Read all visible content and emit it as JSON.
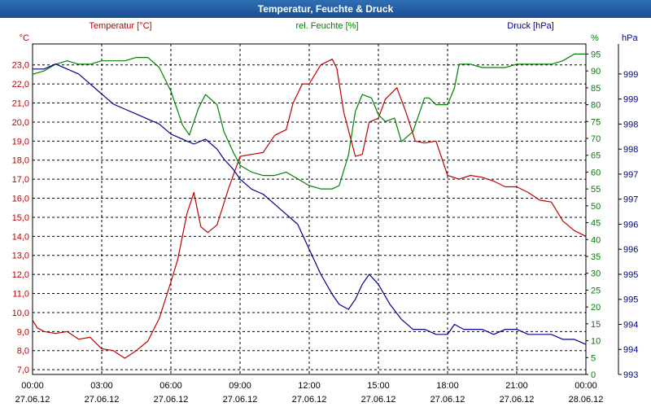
{
  "window": {
    "title": "Temperatur, Feuchte & Druck"
  },
  "chart_data": {
    "type": "line",
    "title": "Temperatur, Feuchte & Druck",
    "xlabel": "",
    "grid": true,
    "x_ticks": [
      {
        "time": "00:00",
        "date": "27.06.12"
      },
      {
        "time": "03:00",
        "date": "27.06.12"
      },
      {
        "time": "06:00",
        "date": "27.06.12"
      },
      {
        "time": "09:00",
        "date": "27.06.12"
      },
      {
        "time": "12:00",
        "date": "27.06.12"
      },
      {
        "time": "15:00",
        "date": "27.06.12"
      },
      {
        "time": "18:00",
        "date": "27.06.12"
      },
      {
        "time": "21:00",
        "date": "27.06.12"
      },
      {
        "time": "00:00",
        "date": "28.06.12"
      }
    ],
    "xlim": [
      0,
      24
    ],
    "axes": {
      "temperature": {
        "label": "Temperatur [°C]",
        "unit": "°C",
        "min": 6.75,
        "max": 24.1,
        "ticks": [
          "7,0",
          "8,0",
          "9,0",
          "10,0",
          "11,0",
          "12,0",
          "13,0",
          "14,0",
          "15,0",
          "16,0",
          "17,0",
          "18,0",
          "19,0",
          "20,0",
          "21,0",
          "22,0",
          "23,0"
        ]
      },
      "humidity": {
        "label": "rel. Feuchte [%]",
        "unit": "%",
        "min": 0,
        "max": 98,
        "ticks": [
          "0",
          "5",
          "10",
          "15",
          "20",
          "25",
          "30",
          "35",
          "40",
          "45",
          "50",
          "55",
          "60",
          "65",
          "70",
          "75",
          "80",
          "85",
          "90",
          "95"
        ]
      },
      "pressure": {
        "label": "Druck [hPa]",
        "unit": "hPa",
        "min": 993,
        "max": 999.6,
        "tick_values": [
          993.0,
          993.5,
          994.0,
          994.5,
          995.0,
          995.5,
          996.0,
          996.5,
          997.0,
          997.5,
          998.0,
          998.5,
          999.0
        ],
        "ticks": [
          "993",
          "994",
          "994",
          "995",
          "995",
          "996",
          "996",
          "997",
          "997",
          "998",
          "998",
          "999",
          "999"
        ]
      }
    },
    "series": [
      {
        "name": "Temperatur [°C]",
        "axis": "temperature",
        "color": "#c00000",
        "x": [
          0.0,
          0.2,
          0.5,
          1.0,
          1.5,
          2.0,
          2.5,
          3.0,
          3.5,
          4.0,
          4.5,
          5.0,
          5.5,
          6.0,
          6.3,
          6.7,
          7.0,
          7.3,
          7.6,
          8.0,
          8.5,
          9.0,
          9.5,
          10.0,
          10.5,
          11.0,
          11.3,
          11.7,
          12.0,
          12.5,
          13.0,
          13.2,
          13.5,
          14.0,
          14.3,
          14.6,
          15.0,
          15.3,
          15.8,
          16.2,
          16.6,
          17.0,
          17.5,
          18.0,
          18.5,
          19.0,
          19.5,
          20.0,
          20.5,
          21.0,
          21.5,
          22.0,
          22.5,
          23.0,
          23.5,
          24.0
        ],
        "y": [
          9.6,
          9.2,
          9.0,
          8.9,
          9.0,
          8.6,
          8.7,
          8.1,
          8.0,
          7.6,
          8.0,
          8.5,
          9.7,
          11.6,
          12.8,
          15.2,
          16.3,
          14.5,
          14.2,
          14.6,
          16.5,
          18.2,
          18.3,
          18.4,
          19.3,
          19.6,
          21.0,
          22.0,
          22.0,
          23.0,
          23.3,
          22.8,
          20.5,
          18.2,
          18.3,
          20.0,
          20.2,
          21.2,
          21.8,
          20.5,
          19.0,
          18.9,
          19.0,
          17.2,
          17.0,
          17.2,
          17.1,
          16.9,
          16.6,
          16.6,
          16.3,
          15.9,
          15.8,
          14.8,
          14.3,
          14.0
        ]
      },
      {
        "name": "rel. Feuchte [%]",
        "axis": "humidity",
        "color": "#008000",
        "x": [
          0.0,
          0.5,
          1.0,
          1.5,
          2.0,
          2.5,
          3.0,
          3.5,
          4.0,
          4.5,
          5.0,
          5.5,
          6.0,
          6.5,
          6.8,
          7.2,
          7.5,
          8.0,
          8.3,
          8.7,
          9.0,
          9.5,
          10.0,
          10.5,
          11.0,
          11.5,
          12.0,
          12.5,
          13.0,
          13.3,
          13.7,
          14.0,
          14.3,
          14.7,
          15.0,
          15.3,
          15.7,
          16.0,
          16.5,
          17.0,
          17.2,
          17.5,
          18.0,
          18.3,
          18.5,
          19.0,
          19.5,
          20.0,
          20.5,
          21.0,
          21.5,
          22.0,
          22.5,
          23.0,
          23.5,
          24.0
        ],
        "y": [
          89,
          90,
          92,
          93,
          92,
          92,
          93,
          93,
          93,
          94,
          94,
          91,
          84,
          74,
          71,
          79,
          83,
          80,
          72,
          66,
          62,
          60,
          59,
          59,
          60,
          58,
          56,
          55,
          55,
          56,
          65,
          78,
          83,
          82,
          77,
          75,
          76,
          69,
          72,
          82,
          82,
          80,
          80,
          85,
          92,
          92,
          91,
          91,
          91,
          92,
          92,
          92,
          92,
          93,
          95,
          95
        ]
      },
      {
        "name": "Druck [hPa]",
        "axis": "pressure",
        "color": "#00008b",
        "x": [
          0.0,
          0.5,
          1.0,
          1.5,
          2.0,
          2.5,
          3.0,
          3.5,
          4.0,
          4.5,
          5.0,
          5.5,
          6.0,
          6.5,
          7.0,
          7.5,
          8.0,
          8.3,
          8.7,
          9.0,
          9.5,
          10.0,
          10.5,
          11.0,
          11.5,
          12.0,
          12.5,
          13.0,
          13.3,
          13.7,
          14.0,
          14.3,
          14.6,
          15.0,
          15.5,
          16.0,
          16.5,
          17.0,
          17.5,
          18.0,
          18.3,
          18.7,
          19.0,
          19.5,
          20.0,
          20.5,
          21.0,
          21.5,
          22.0,
          22.5,
          23.0,
          23.5,
          24.0
        ],
        "y": [
          999.1,
          999.1,
          999.2,
          999.1,
          999.0,
          998.8,
          998.6,
          998.4,
          998.3,
          998.2,
          998.1,
          998.0,
          997.8,
          997.7,
          997.6,
          997.7,
          997.5,
          997.3,
          997.1,
          996.9,
          996.7,
          996.6,
          996.4,
          996.2,
          996.0,
          995.5,
          995.0,
          994.6,
          994.4,
          994.3,
          994.5,
          994.8,
          995.0,
          994.8,
          994.4,
          994.1,
          993.9,
          993.9,
          993.8,
          993.8,
          994.0,
          993.9,
          993.9,
          993.9,
          993.8,
          993.9,
          993.9,
          993.8,
          993.8,
          993.8,
          993.7,
          993.7,
          993.6
        ]
      }
    ]
  }
}
